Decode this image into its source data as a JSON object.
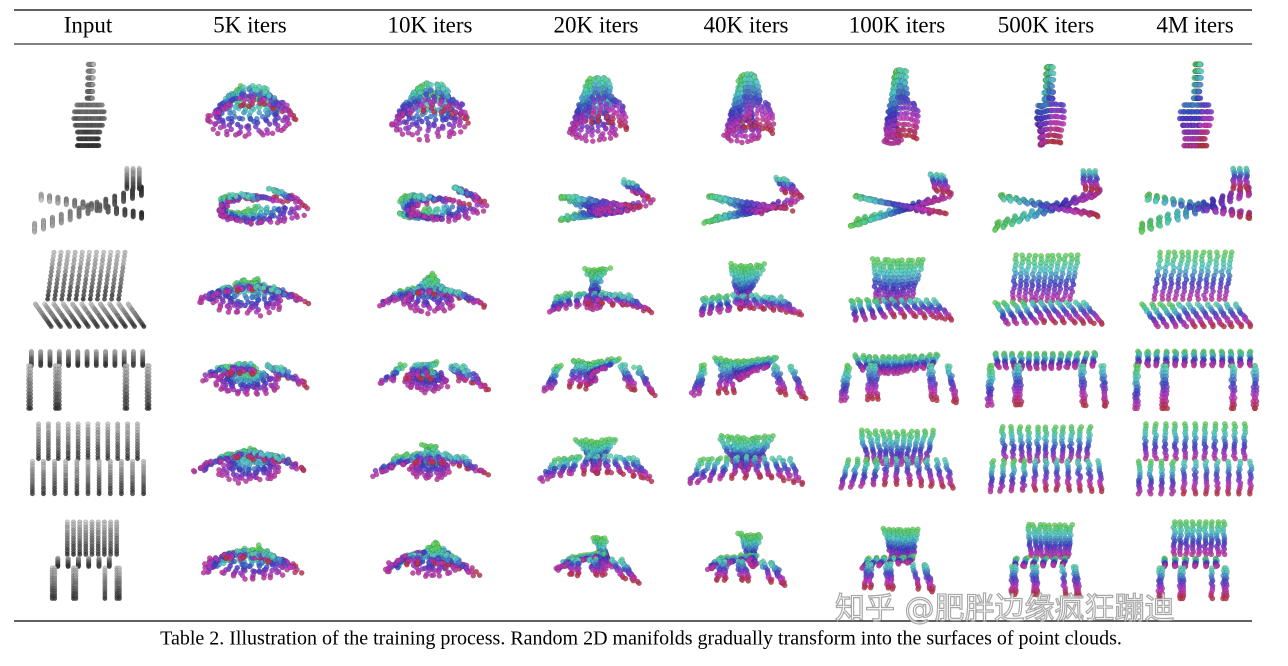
{
  "header": {
    "columns": [
      "Input",
      "5K iters",
      "10K iters",
      "20K iters",
      "40K iters",
      "100K iters",
      "500K iters",
      "4M iters"
    ]
  },
  "caption": "Table 2. Illustration of the training process. Random 2D manifolds gradually transform into the surfaces of point clouds.",
  "watermark": "知乎 @肥胖边缘疯狂蹦迪"
}
